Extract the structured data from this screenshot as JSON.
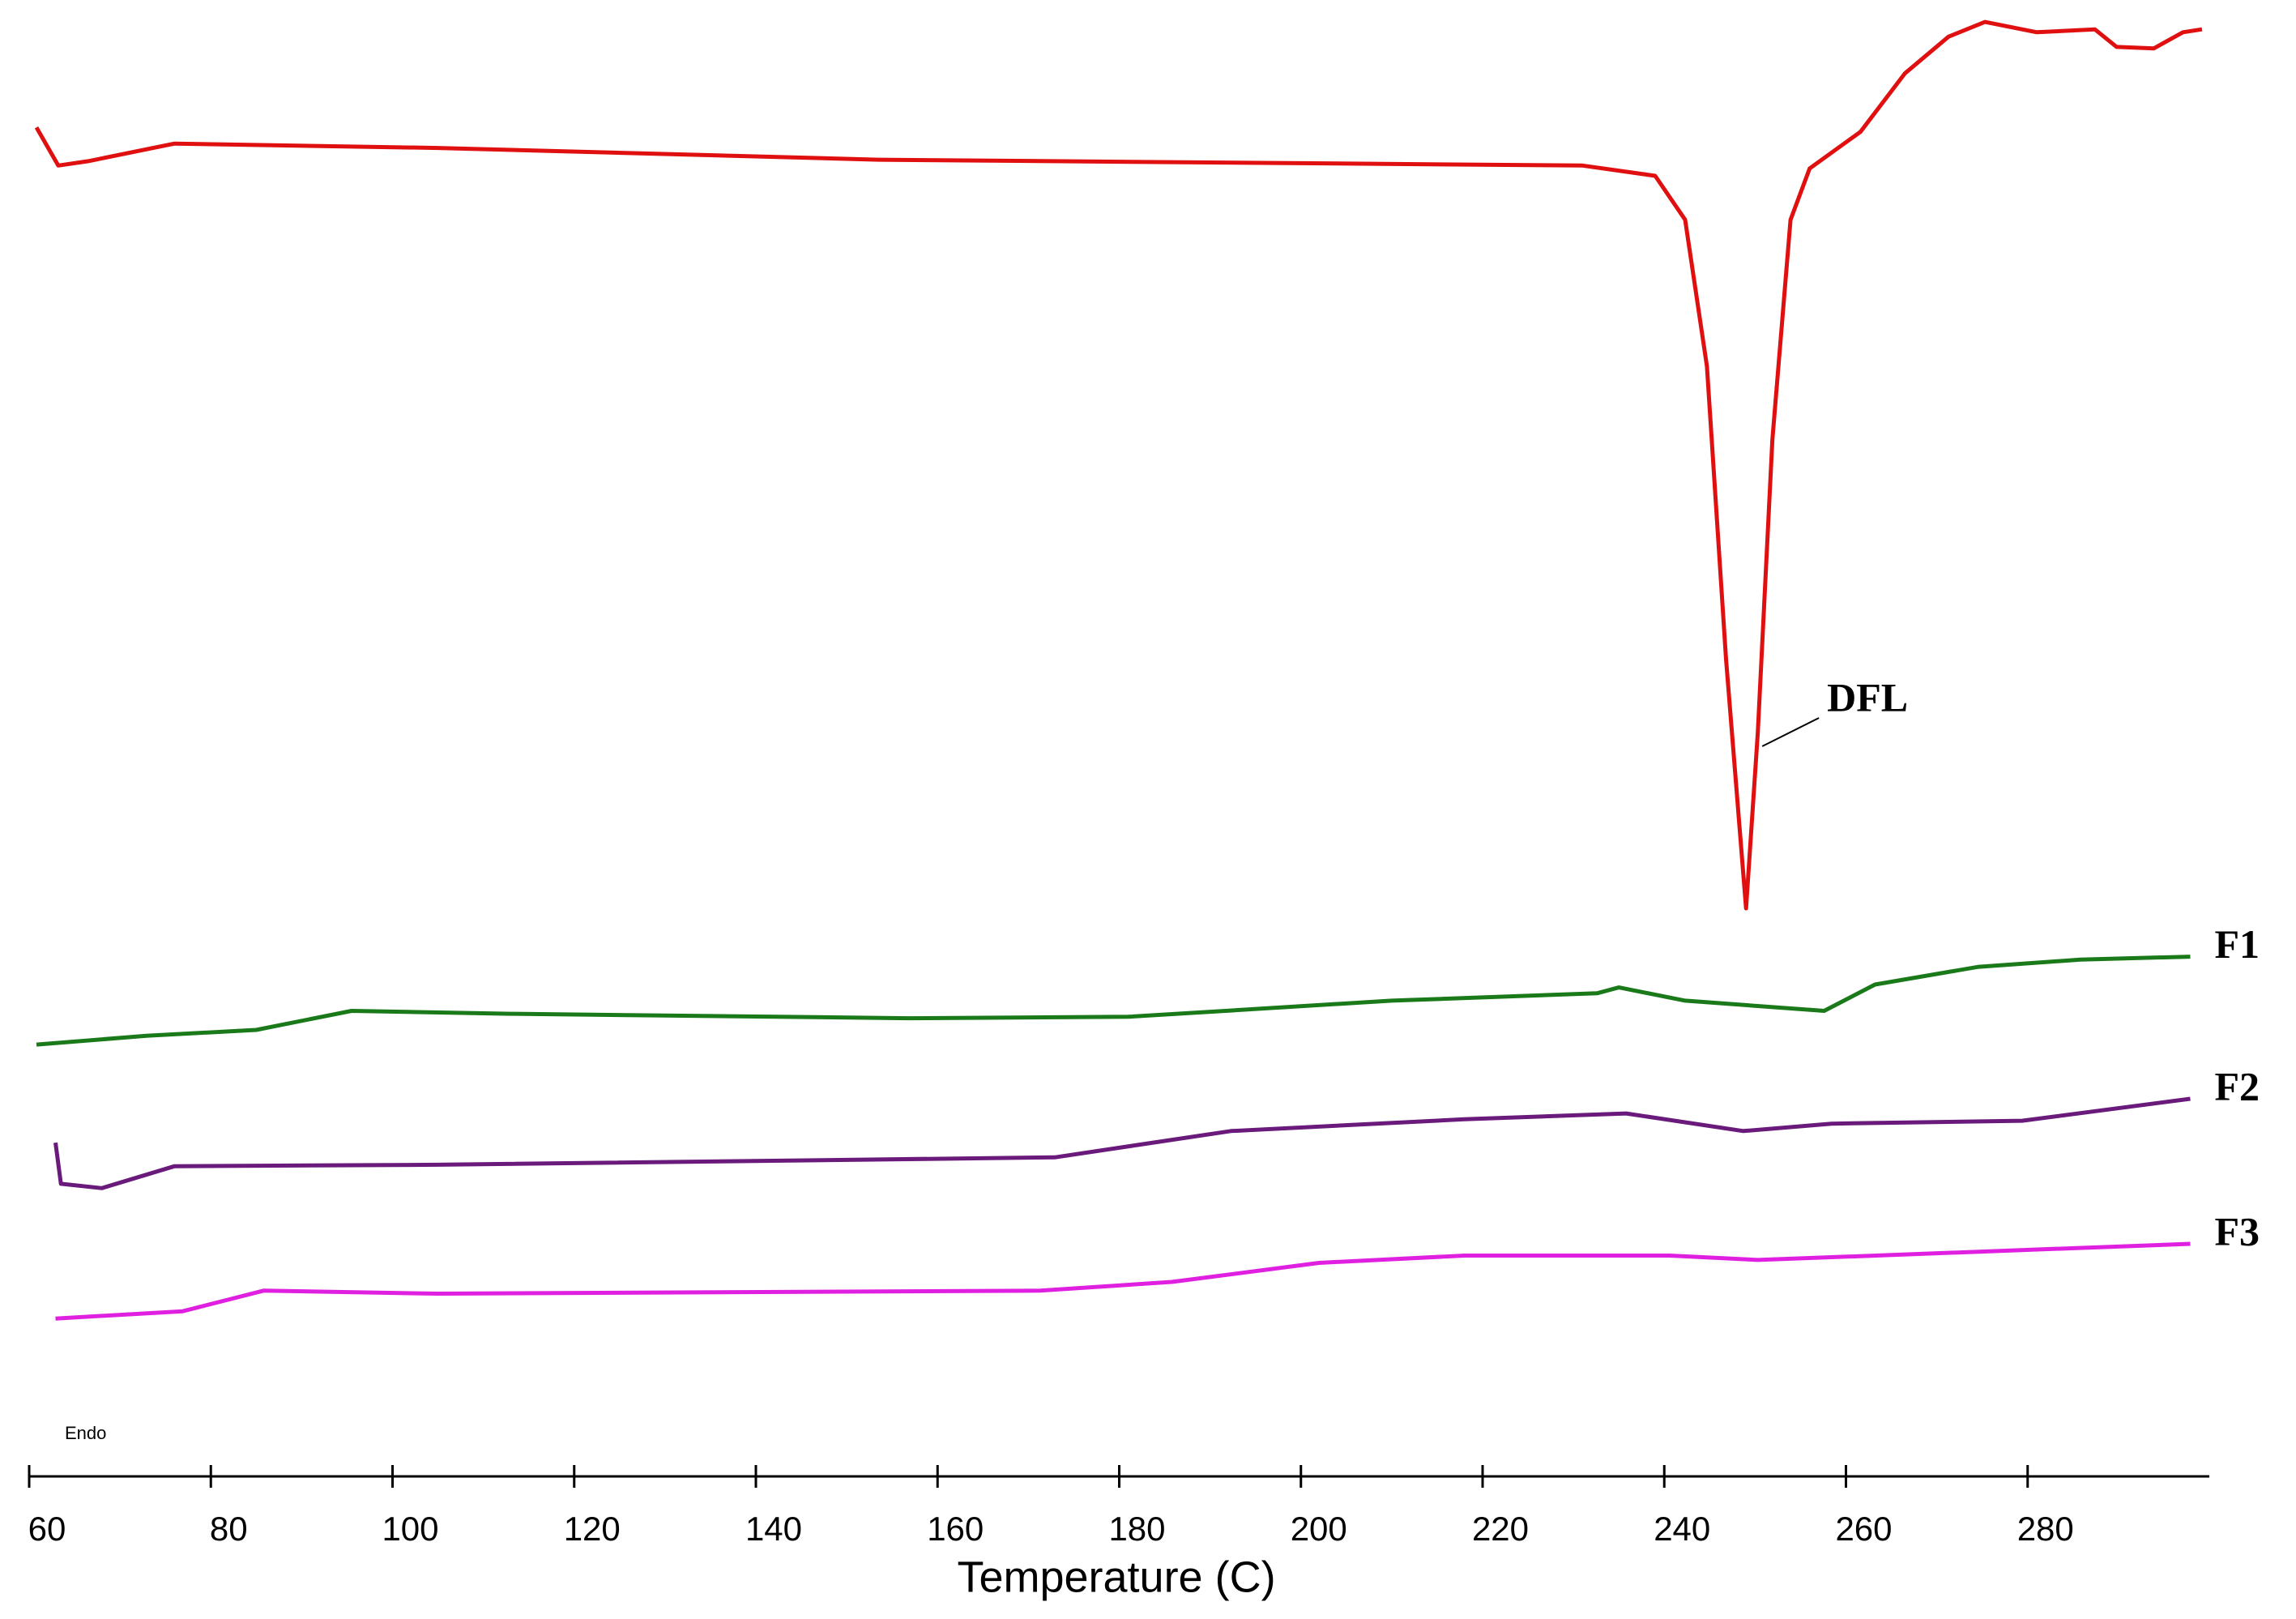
{
  "chart_data": {
    "type": "line",
    "x_label": "Temperature (C)",
    "annotation": "Endo",
    "xlim": [
      60,
      300
    ],
    "xticks": [
      60,
      80,
      100,
      120,
      140,
      160,
      180,
      200,
      220,
      240,
      260,
      280
    ],
    "ylim": [
      0,
      100
    ],
    "series": [
      {
        "name": "DFL",
        "color": "#e01010",
        "x": [
          60.8,
          63.2,
          66.5,
          76,
          105,
          153.5,
          231,
          239,
          242.3,
          244.7,
          246.8,
          249,
          250.3,
          251.9,
          253.9,
          256,
          261.6,
          266.5,
          271.3,
          275.3,
          281,
          287.4,
          289.8,
          293.9,
          297.1,
          299.2
        ],
        "values": [
          91.3,
          88.7,
          89,
          90.2,
          89.9,
          89.1,
          88.7,
          88,
          85,
          75,
          55,
          38,
          50,
          70,
          85,
          88.5,
          91,
          95,
          97.5,
          98.5,
          97.8,
          98,
          96.8,
          96.7,
          97.8,
          98
        ]
      },
      {
        "name": "F1",
        "color": "#1a7a1a",
        "x": [
          60.8,
          72.9,
          85,
          95.5,
          113,
          156.8,
          181,
          210,
          232.6,
          235,
          242.3,
          257.6,
          263.2,
          274.5,
          285.8,
          297.9
        ],
        "values": [
          28.7,
          29.3,
          29.7,
          31,
          30.8,
          30.5,
          30.6,
          31.7,
          32.2,
          32.6,
          31.7,
          31,
          32.8,
          34,
          34.5,
          34.7
        ]
      },
      {
        "name": "F2",
        "color": "#6a1a7a",
        "x": [
          62.9,
          63.5,
          68,
          76,
          105,
          172.9,
          192.3,
          218,
          235.8,
          248.7,
          258.4,
          279.4,
          297.9
        ],
        "values": [
          22,
          19.2,
          18.9,
          20.4,
          20.5,
          21,
          22.8,
          23.6,
          24,
          22.8,
          23.3,
          23.5,
          25
        ]
      },
      {
        "name": "F3",
        "color": "#e020e0",
        "x": [
          62.9,
          76.9,
          85.8,
          105,
          171.3,
          185.8,
          202,
          218,
          240.6,
          250.3,
          297.9
        ],
        "values": [
          10,
          10.5,
          11.9,
          11.7,
          11.9,
          12.5,
          13.8,
          14.3,
          14.3,
          14,
          15.1
        ]
      }
    ]
  }
}
